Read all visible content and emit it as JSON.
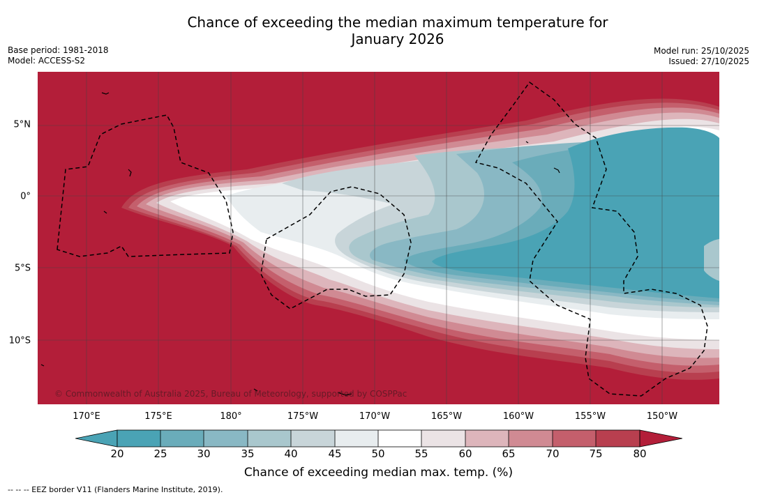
{
  "title": {
    "line1": "Chance of exceeding the median maximum temperature for",
    "line2": "January 2026"
  },
  "meta": {
    "base_period": "Base period: 1981-2018",
    "model": "Model: ACCESS-S2",
    "model_run": "Model run: 25/10/2025",
    "issued": "Issued: 27/10/2025"
  },
  "map": {
    "credit": "© Commonwealth of Australia 2025, Bureau of Meteorology, supported by COSPPac",
    "lat_labels": [
      "5°N",
      "0°",
      "5°S",
      "10°S"
    ],
    "lon_labels": [
      "170°E",
      "175°E",
      "180°",
      "175°W",
      "170°W",
      "165°W",
      "160°W",
      "155°W",
      "150°W"
    ],
    "colors": {
      "c20": "#4aa3b5",
      "c25": "#6aacba",
      "c30": "#89b8c4",
      "c35": "#a9c7cd",
      "c40": "#c8d5d9",
      "c45": "#e8edef",
      "c50": "#ffffff",
      "c55": "#ffffff",
      "c60": "#ebe3e5",
      "c65": "#ddb5bb",
      "c70": "#d08a93",
      "c75": "#c45f6c",
      "c80": "#b83f4f",
      "over80": "#b31e39",
      "under20": "#4aa3b5"
    }
  },
  "colorbar": {
    "ticks": [
      "20",
      "25",
      "30",
      "35",
      "40",
      "45",
      "50",
      "55",
      "60",
      "65",
      "70",
      "75",
      "80"
    ],
    "label": "Chance of exceeding median max. temp. (%)"
  },
  "footer": {
    "legend": "--  --  -- EEZ border V11 (Flanders Marine Institute, 2019)."
  }
}
